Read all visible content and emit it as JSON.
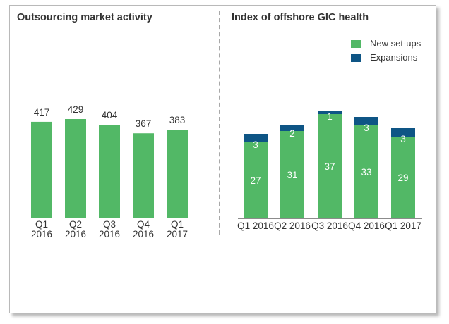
{
  "colors": {
    "green": "#52b866",
    "blue": "#0e5585",
    "axis": "#8c8c8c",
    "text": "#333333"
  },
  "chart_data": [
    {
      "type": "bar",
      "title": "Outsourcing market activity",
      "categories": [
        "Q1 2016",
        "Q2 2016",
        "Q3 2016",
        "Q4 2016",
        "Q1 2017"
      ],
      "category_lines": [
        [
          "Q1",
          "2016"
        ],
        [
          "Q2",
          "2016"
        ],
        [
          "Q3",
          "2016"
        ],
        [
          "Q4",
          "2016"
        ],
        [
          "Q1",
          "2017"
        ]
      ],
      "values": [
        417,
        429,
        404,
        367,
        383
      ],
      "data_labels": [
        "417",
        "429",
        "404",
        "367",
        "383"
      ],
      "xlabel": "",
      "ylabel": "",
      "ylim": [
        0,
        450
      ],
      "grid": false,
      "legend": null
    },
    {
      "type": "bar",
      "stacked": true,
      "title": "Index of offshore GIC health",
      "categories": [
        "Q1 2016",
        "Q2 2016",
        "Q3 2016",
        "Q4 2016",
        "Q1 2017"
      ],
      "series": [
        {
          "name": "New set-ups",
          "color": "#52b866",
          "values": [
            27,
            31,
            37,
            33,
            29
          ]
        },
        {
          "name": "Expansions",
          "color": "#0e5585",
          "values": [
            3,
            2,
            1,
            3,
            3
          ]
        }
      ],
      "xlabel": "",
      "ylabel": "",
      "ylim": [
        0,
        40
      ],
      "grid": false,
      "legend": "top-right"
    }
  ]
}
